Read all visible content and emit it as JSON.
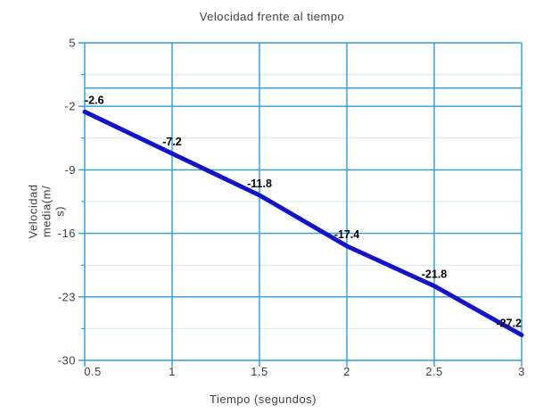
{
  "chart_data": {
    "type": "line",
    "title": "Velocidad frente al tiempo",
    "xlabel": "Tiempo (segundos)",
    "ylabel": "Velocidad media(m/s)",
    "ylabel_lines": [
      "Velocidad",
      "media(m/",
      "s)"
    ],
    "x": [
      0.5,
      1,
      1.5,
      2,
      2.5,
      3
    ],
    "series": [
      {
        "name": "Velocidad media",
        "values": [
          -2.6,
          -7.2,
          -11.8,
          -17.4,
          -21.8,
          -27.2
        ]
      }
    ],
    "point_labels": [
      "-2.6",
      "-7.2",
      "-11.8",
      "-17.4",
      "-21.8",
      "-27.2"
    ],
    "xlim": [
      0.5,
      3
    ],
    "ylim": [
      -30,
      5
    ],
    "x_ticks": [
      0.5,
      1,
      1.5,
      2,
      2.5,
      3
    ],
    "x_tick_labels": [
      "0.5",
      "1",
      "1.5",
      "2",
      "2.5",
      "3"
    ],
    "y_ticks": [
      5,
      -2,
      -9,
      -16,
      -23,
      -30
    ],
    "y_tick_labels": [
      "5",
      "-2",
      "-9",
      "-16",
      "-23",
      "-30"
    ],
    "y_minor_ticks": [
      1.5,
      -5.5,
      -12.5,
      -19.5,
      -26.5
    ],
    "zero_line_y": 0,
    "grid": {
      "vertical": "major",
      "horizontal": "major+minor"
    },
    "legend": "none",
    "colors": {
      "line": "#1313c8",
      "grid_major": "#2e9bd8",
      "grid_minor": "#cfe9f6",
      "axis": "#2e9bd8",
      "tick_text": "#404040",
      "title_text": "#404040",
      "point_label_text": "#000000",
      "background": "#ffffff"
    }
  }
}
